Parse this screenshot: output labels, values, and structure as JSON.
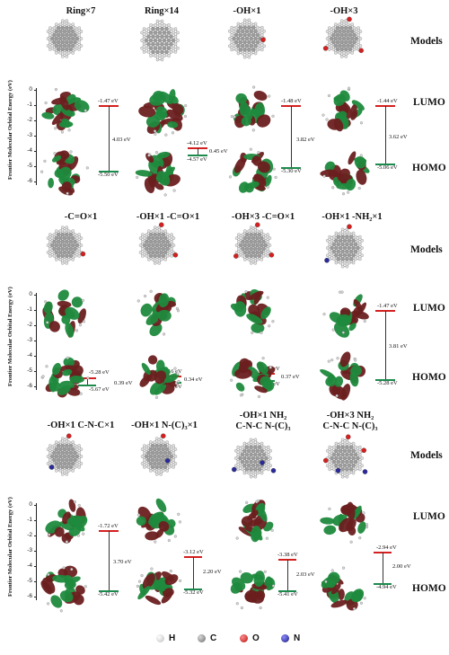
{
  "panel1": {
    "columns": [
      "Ring×7",
      "Ring×14",
      "-OH×1",
      "-OH×3"
    ],
    "y_axis_title": "Frontier Molecular Orbital Energy (eV)",
    "yticks": [
      "0",
      "-1",
      "-2",
      "-3",
      "-4",
      "-5",
      "-6"
    ],
    "energies": [
      {
        "lumo": "-1.47 eV",
        "homo": "-5.50 eV",
        "gap": "4.03 eV"
      },
      {
        "lumo": "-4.12 eV",
        "homo": "-4.57 eV",
        "gap": "0.45 eV"
      },
      {
        "lumo": "-1.48 eV",
        "homo": "-5.30 eV",
        "gap": "3.82 eV"
      },
      {
        "lumo": "-1.44 eV",
        "homo": "-5.06 eV",
        "gap": "3.62 eV"
      }
    ]
  },
  "panel2": {
    "columns": [
      "-C=O×1",
      "-OH×1 -C=O×1",
      "-OH×3 -C=O×1",
      "-OH×1 -NH₂×1"
    ],
    "y_axis_title": "Frontier Molecular Orbital Energy (eV)",
    "yticks": [
      "0",
      "-1",
      "-2",
      "-3",
      "-4",
      "-5",
      "-6"
    ],
    "energies": [
      {
        "lumo": "-5.28 eV",
        "homo": "-5.67 eV",
        "gap": "0.39 eV"
      },
      {
        "lumo": "-5.16 eV",
        "homo": "-5.50 eV",
        "gap": "0.34 eV"
      },
      {
        "lumo": "-5.03 eV",
        "homo": "-5.40 eV",
        "gap": "0.37 eV"
      },
      {
        "lumo": "-1.47 eV",
        "homo": "-5.28 eV",
        "gap": "3.81 eV"
      }
    ]
  },
  "panel3": {
    "columns": [
      {
        "l1": "-OH×1 C-N-C×1",
        "l2": ""
      },
      {
        "l1": "-OH×1 N-(C)₃×1",
        "l2": ""
      },
      {
        "l1": "-OH×1 NH₂",
        "l2": "C-N-C N-(C)₃"
      },
      {
        "l1": "-OH×3 NH₂",
        "l2": "C-N-C N-(C)₃"
      }
    ],
    "y_axis_title": "Frontier Molecular Orbital Energy (eV)",
    "yticks": [
      "0",
      "-1",
      "-2",
      "-3",
      "-4",
      "-5",
      "-6"
    ],
    "energies": [
      {
        "lumo": "-1.72 eV",
        "homo": "-5.42 eV",
        "gap": "3.70 eV"
      },
      {
        "lumo": "-3.12 eV",
        "homo": "-5.32 eV",
        "gap": "2.20 eV"
      },
      {
        "lumo": "-3.38 eV",
        "homo": "-5.41 eV",
        "gap": "2.03 eV"
      },
      {
        "lumo": "-2.94 eV",
        "homo": "-4.94 eV",
        "gap": "2.00 eV"
      }
    ]
  },
  "row_labels": {
    "models": "Models",
    "lumo": "LUMO",
    "homo": "HOMO"
  },
  "legend": [
    {
      "symbol": "H",
      "color": "#e6e6e6"
    },
    {
      "symbol": "C",
      "color": "#8c8c8c"
    },
    {
      "symbol": "O",
      "color": "#d42020"
    },
    {
      "symbol": "N",
      "color": "#2a2a9a"
    }
  ],
  "colors": {
    "lumo_level": "#d42020",
    "homo_level": "#1d8a4d",
    "orbital_positive": "#6b1f1f",
    "orbital_negative": "#1f8a3d"
  }
}
